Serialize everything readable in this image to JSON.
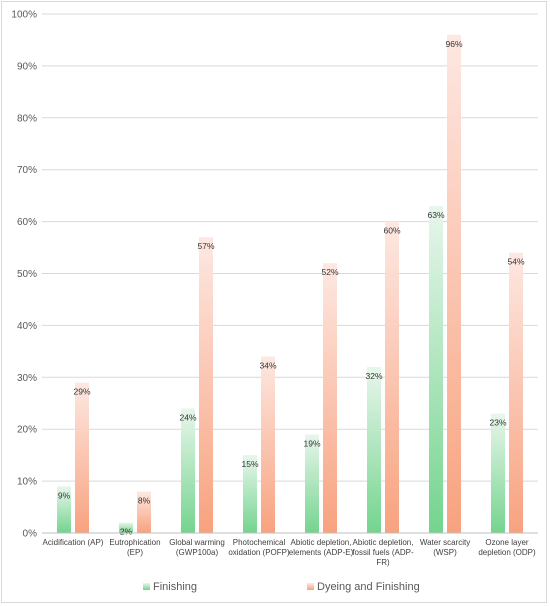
{
  "chart_data": {
    "type": "bar",
    "categories": [
      [
        "Acidification (AP)"
      ],
      [
        "Eutrophication",
        "(EP)"
      ],
      [
        "Global warming",
        "(GWP100a)"
      ],
      [
        "Photochemical",
        "oxidation (POFP)"
      ],
      [
        "Abiotic depletion,",
        "elements (ADP-E)"
      ],
      [
        "Abiotic depletion,",
        "fossil fuels (ADP-",
        "FR)"
      ],
      [
        "Water scarcity",
        "(WSP)"
      ],
      [
        "Ozone layer",
        "depletion (ODP)"
      ]
    ],
    "series": [
      {
        "name": "Finishing",
        "values": [
          9,
          2,
          24,
          15,
          19,
          32,
          63,
          23
        ],
        "labels": [
          "9%",
          "2%",
          "24%",
          "15%",
          "19%",
          "32%",
          "63%",
          "23%"
        ],
        "color_top": "#e8f6ec",
        "color_bottom": "#74d48e"
      },
      {
        "name": "Dyeing and Finishing",
        "values": [
          29,
          8,
          57,
          34,
          52,
          60,
          96,
          54
        ],
        "labels": [
          "29%",
          "8%",
          "57%",
          "34%",
          "52%",
          "60%",
          "96%",
          "54%"
        ],
        "color_top": "#fde8e2",
        "color_bottom": "#f8a27f"
      }
    ],
    "ylim": [
      0,
      100
    ],
    "yticks": [
      0,
      10,
      20,
      30,
      40,
      50,
      60,
      70,
      80,
      90,
      100
    ],
    "ytick_labels": [
      "0%",
      "10%",
      "20%",
      "30%",
      "40%",
      "50%",
      "60%",
      "70%",
      "80%",
      "90%",
      "100%"
    ],
    "grid": true,
    "legend_position": "bottom"
  }
}
